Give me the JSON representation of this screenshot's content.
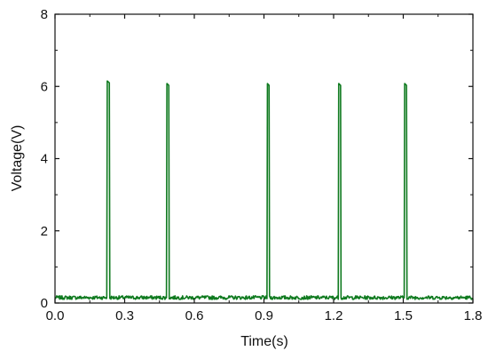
{
  "chart_data": {
    "type": "line",
    "title": "",
    "xlabel": "Time(s)",
    "ylabel": "Voltage(V)",
    "xlim": [
      0.0,
      1.8
    ],
    "ylim": [
      0,
      8
    ],
    "x_ticks": [
      0.0,
      0.3,
      0.6,
      0.9,
      1.2,
      1.5,
      1.8
    ],
    "x_tick_labels": [
      "0.0",
      "0.3",
      "0.6",
      "0.9",
      "1.2",
      "1.5",
      "1.8"
    ],
    "y_ticks": [
      0,
      2,
      4,
      6,
      8
    ],
    "y_tick_labels": [
      "0",
      "2",
      "4",
      "6",
      "8"
    ],
    "grid": false,
    "legend": "none",
    "series": [
      {
        "color": "#0f7a1f",
        "baseline": 0.15,
        "noise_amplitude": 0.1,
        "pulses": [
          {
            "start": 0.223,
            "end": 0.236,
            "peak": 6.15
          },
          {
            "start": 0.48,
            "end": 0.492,
            "peak": 6.08
          },
          {
            "start": 0.913,
            "end": 0.924,
            "peak": 6.08
          },
          {
            "start": 1.22,
            "end": 1.232,
            "peak": 6.08
          },
          {
            "start": 1.504,
            "end": 1.516,
            "peak": 6.08
          }
        ]
      }
    ]
  }
}
